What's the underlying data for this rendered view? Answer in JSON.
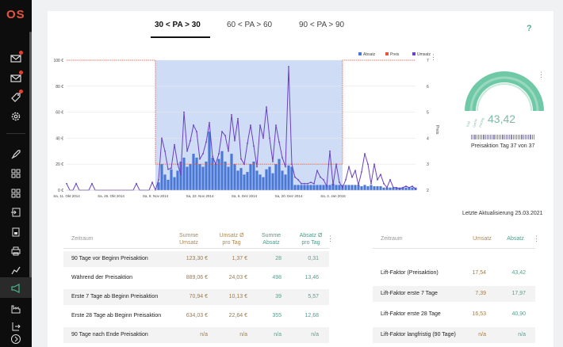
{
  "app": {
    "logo": "OS"
  },
  "tabs": [
    "30 < PA > 30",
    "60 < PA > 60",
    "90 < PA > 90"
  ],
  "active_tab": 0,
  "help_label": "?",
  "chart_data": {
    "type": "bar+line",
    "legend": [
      "Absatz",
      "Preis",
      "Umsatz"
    ],
    "legend_colors": [
      "#4a78d6",
      "#e5553c",
      "#6a3fc8"
    ],
    "left_ticks": [
      "0 €",
      "20 €",
      "40 €",
      "60 €",
      "80 €",
      "100 €"
    ],
    "right_ticks": [
      "2",
      "3",
      "4",
      "5",
      "6",
      "7"
    ],
    "right_axis_label": "Preis",
    "x_ticks": [
      "Sa, 11. Okt 2014",
      "Sa, 25. Okt 2014",
      "Sa, 8. Nov 2014",
      "Sa, 22. Nov 2014",
      "Sa, 6. Dez 2014",
      "Sa, 20. Dez 2014",
      "Sa, 3. Jan 2015"
    ],
    "promo_range_days": [
      28,
      87
    ],
    "price_levels": {
      "before": 7,
      "during": 3,
      "after": 7
    },
    "absatz_days": [
      0,
      0,
      0,
      0,
      0,
      0,
      0,
      0,
      0,
      0,
      0,
      0,
      0,
      0,
      0,
      0,
      0,
      0,
      0,
      0,
      0,
      0,
      0,
      0,
      0,
      0,
      0,
      0,
      0,
      6,
      20,
      12,
      8,
      16,
      10,
      15,
      22,
      25,
      18,
      20,
      28,
      25,
      20,
      18,
      22,
      45,
      25,
      20,
      24,
      30,
      22,
      18,
      28,
      20,
      15,
      17,
      12,
      14,
      20,
      22,
      15,
      12,
      10,
      16,
      18,
      13,
      20,
      24,
      15,
      12,
      19,
      18,
      4,
      4,
      4,
      4,
      4,
      4,
      4,
      4,
      4,
      4,
      4,
      4,
      5,
      4,
      4,
      4,
      4,
      4,
      4,
      4,
      4,
      3,
      4,
      3,
      4,
      3,
      3,
      3,
      2,
      2,
      2,
      2,
      2,
      2,
      2,
      2,
      2,
      2,
      2
    ],
    "umsatz_days": [
      5,
      0,
      0,
      5,
      0,
      0,
      0,
      0,
      5,
      0,
      0,
      0,
      0,
      0,
      0,
      0,
      0,
      0,
      0,
      0,
      0,
      0,
      5,
      0,
      0,
      0,
      0,
      6,
      0,
      8,
      40,
      30,
      16,
      17,
      35,
      20,
      12,
      60,
      30,
      38,
      50,
      45,
      24,
      28,
      37,
      52,
      26,
      20,
      28,
      45,
      42,
      30,
      58,
      38,
      55,
      24,
      20,
      36,
      50,
      34,
      18,
      50,
      40,
      64,
      40,
      22,
      50,
      37,
      25,
      18,
      95,
      20,
      10,
      8,
      5,
      5,
      5,
      6,
      5,
      15,
      10,
      8,
      3,
      30,
      4,
      20,
      6,
      2,
      8,
      18,
      10,
      15,
      4,
      14,
      28,
      20,
      5,
      20,
      8,
      12,
      5,
      2,
      8,
      2,
      2,
      1,
      2,
      3,
      2,
      3,
      1
    ]
  },
  "gauge": {
    "value": "43,42",
    "labels": [
      "Trial",
      "Game",
      "Pricing"
    ],
    "progress_filled": 37,
    "progress_total": 37,
    "progress_text": "Preisaktion Tag 37 von 37",
    "color": "#6fc9a6"
  },
  "updated_text": "Letzte Aktualisierung 25.03.2021",
  "table1": {
    "headers": [
      "Zeitraum",
      "Summe Umsatz",
      "Umsatz Ø pro Tag",
      "Summe Absatz",
      "Absatz Ø pro Tag"
    ],
    "rows": [
      [
        "90 Tage vor Beginn Preisaktion",
        "123,30 €",
        "1,37 €",
        "28",
        "0,31"
      ],
      [
        "Während der Preisaktion",
        "889,06 €",
        "24,03 €",
        "498",
        "13,46"
      ],
      [
        "Erste 7 Tage ab Beginn Preisaktion",
        "70,94 €",
        "10,13 €",
        "39",
        "5,57"
      ],
      [
        "Erste 28 Tage ab Beginn Preisaktion",
        "634,03 €",
        "22,64 €",
        "355",
        "12,68"
      ],
      [
        "90 Tage nach Ende Preisaktion",
        "n/a",
        "n/a",
        "n/a",
        "n/a"
      ]
    ]
  },
  "table2": {
    "headers": [
      "Zeitraum",
      "Umsatz",
      "Absatz"
    ],
    "rows": [
      [
        "Lift-Faktor (Preisaktion)",
        "17,54",
        "43,42"
      ],
      [
        "Lift-Faktor erste 7 Tage",
        "7,39",
        "17,97"
      ],
      [
        "Lift-Faktor erste 28 Tage",
        "16,53",
        "40,90"
      ],
      [
        "Lift-Faktor langfristig (90 Tage)",
        "n/a",
        "n/a"
      ]
    ]
  },
  "sidebar_icons": [
    "mail-icon",
    "mail-icon",
    "tag-icon",
    "settings-icon",
    "rocket-icon",
    "grid-icon",
    "grid-icon",
    "grid-icon",
    "import-icon",
    "document-icon",
    "printer-icon",
    "chart-icon",
    "megaphone-icon",
    "factory-icon",
    "export-icon",
    "arrow-icon"
  ]
}
